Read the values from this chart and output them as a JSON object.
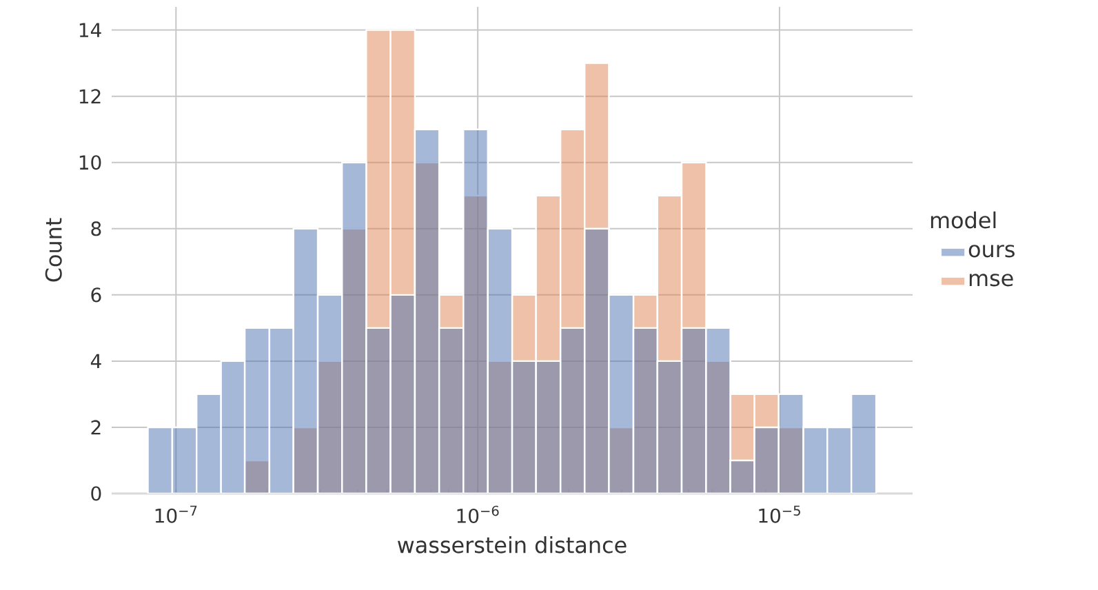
{
  "chart_data": {
    "type": "histogram",
    "xlabel": "wasserstein distance",
    "ylabel": "Count",
    "legend_title": "model",
    "bins": [
      8.07e-08,
      9.72e-08,
      1.17e-07,
      1.41e-07,
      1.69e-07,
      2.04e-07,
      2.45e-07,
      2.95e-07,
      3.55e-07,
      4.27e-07,
      5.14e-07,
      6.19e-07,
      7.45e-07,
      8.96e-07,
      1.08e-06,
      1.3e-06,
      1.56e-06,
      1.88e-06,
      2.26e-06,
      2.72e-06,
      3.28e-06,
      3.94e-06,
      4.74e-06,
      5.71e-06,
      6.87e-06,
      8.26e-06,
      9.94e-06,
      1.2e-05,
      1.44e-05,
      1.73e-05,
      2.09e-05
    ],
    "series": [
      {
        "name": "ours",
        "color": "#4c72b0",
        "values": [
          2,
          2,
          3,
          4,
          5,
          5,
          8,
          6,
          10,
          5,
          6,
          11,
          5,
          11,
          8,
          4,
          4,
          5,
          8,
          6,
          5,
          4,
          5,
          5,
          1,
          2,
          3,
          2,
          2,
          3
        ]
      },
      {
        "name": "mse",
        "color": "#dd8452",
        "values": [
          0,
          0,
          0,
          0,
          1,
          0,
          2,
          4,
          8,
          14,
          14,
          10,
          6,
          9,
          4,
          6,
          9,
          11,
          13,
          2,
          6,
          9,
          10,
          4,
          3,
          3,
          2,
          0,
          0,
          0
        ]
      }
    ],
    "log": "x",
    "xlim": [
      6.12e-08,
      2.76e-05
    ],
    "ylim": [
      0,
      14.7
    ],
    "xticks": [
      {
        "value": 1e-07,
        "label": "10$^{−7}$"
      },
      {
        "value": 1e-06,
        "label": "10$^{−6}$"
      },
      {
        "value": 1e-05,
        "label": "10$^{−5}$"
      }
    ],
    "yticks": [
      0,
      2,
      4,
      6,
      8,
      10,
      12,
      14
    ],
    "grid": true,
    "legend": "right"
  }
}
